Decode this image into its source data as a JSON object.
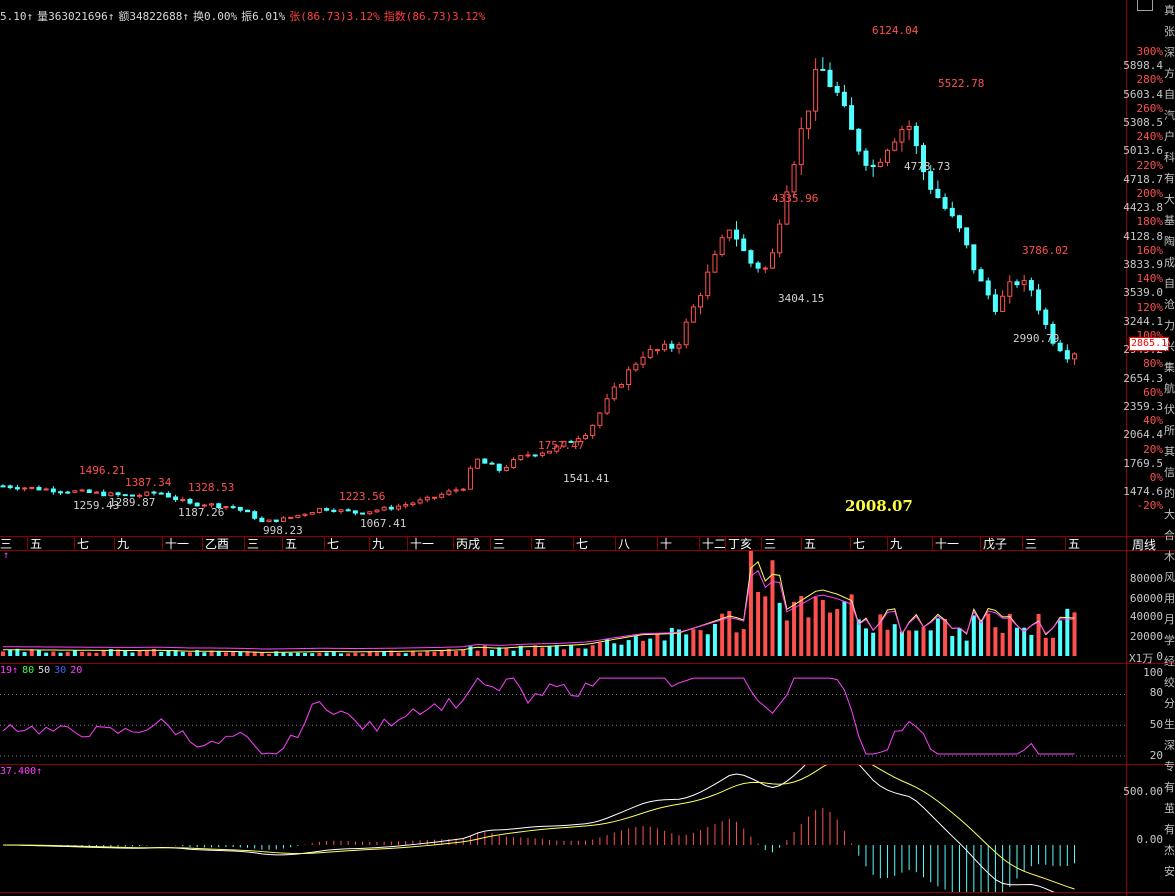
{
  "info_bar": {
    "items": [
      {
        "text": "5.10↑",
        "color": "white"
      },
      {
        "text": "量363021696↑",
        "color": "white"
      },
      {
        "text": "额34822688↑",
        "color": "white"
      },
      {
        "text": "换0.00%",
        "color": "white"
      },
      {
        "text": "振6.01%",
        "color": "white"
      },
      {
        "text": "张(86.73)3.12%",
        "color": "red"
      },
      {
        "text": "指数(86.73)3.12%",
        "color": "red"
      }
    ]
  },
  "price_axis": {
    "levels": [
      {
        "price": "5898.4",
        "pct": "300%"
      },
      {
        "price": "5603.4",
        "pct": "280%"
      },
      {
        "price": "5308.5",
        "pct": "260%"
      },
      {
        "price": "5013.6",
        "pct": "240%"
      },
      {
        "price": "4718.7",
        "pct": "220%"
      },
      {
        "price": "4423.8",
        "pct": "200%"
      },
      {
        "price": "4128.8",
        "pct": "180%"
      },
      {
        "price": "3833.9",
        "pct": "160%"
      },
      {
        "price": "3539.0",
        "pct": "140%"
      },
      {
        "price": "3244.1",
        "pct": "120%"
      },
      {
        "price": "2949.2",
        "pct": "100%"
      },
      {
        "price": "2654.3",
        "pct": "80%"
      },
      {
        "price": "2359.3",
        "pct": "60%"
      },
      {
        "price": "2064.4",
        "pct": "40%"
      },
      {
        "price": "1769.5",
        "pct": "20%"
      },
      {
        "price": "1474.6",
        "pct": "0%"
      },
      {
        "price": "",
        "pct": "-20%"
      }
    ],
    "current_price": "2865.1"
  },
  "annotations": [
    {
      "text": "6124.04",
      "type": "high"
    },
    {
      "text": "5522.78",
      "type": "high"
    },
    {
      "text": "4778.73",
      "type": "low"
    },
    {
      "text": "4335.96",
      "type": "high"
    },
    {
      "text": "3404.15",
      "type": "low"
    },
    {
      "text": "3786.02",
      "type": "high"
    },
    {
      "text": "2990.79",
      "type": "low"
    },
    {
      "text": "1757.47",
      "type": "high"
    },
    {
      "text": "1541.41",
      "type": "low"
    },
    {
      "text": "1496.21",
      "type": "high"
    },
    {
      "text": "1387.34",
      "type": "high"
    },
    {
      "text": "1259.43",
      "type": "low"
    },
    {
      "text": "1289.87",
      "type": "low"
    },
    {
      "text": "1328.53",
      "type": "high"
    },
    {
      "text": "1187.26",
      "type": "low"
    },
    {
      "text": "1223.56",
      "type": "high"
    },
    {
      "text": "998.23",
      "type": "low"
    },
    {
      "text": "1067.41",
      "type": "low"
    }
  ],
  "date_tag": "2008.07",
  "time_axis": {
    "labels": [
      "三",
      "五",
      "七",
      "九",
      "十一",
      "乙酉",
      "三",
      "五",
      "七",
      "九",
      "十一",
      "丙戌",
      "三",
      "五",
      "七",
      "八",
      "十",
      "十二",
      "丁亥",
      "三",
      "五",
      "七",
      "九",
      "十一",
      "戊子",
      "三",
      "五"
    ],
    "period_button": "周线"
  },
  "volume_panel": {
    "header": "↑",
    "axis": [
      "80000",
      "60000",
      "40000",
      "20000",
      "0"
    ],
    "unit": "X1万"
  },
  "kdj_panel": {
    "header": [
      {
        "text": "19↑",
        "color": "magenta"
      },
      {
        "text": "80",
        "color": "green"
      },
      {
        "text": "50",
        "color": "white"
      },
      {
        "text": "30",
        "color": "blue"
      },
      {
        "text": "20",
        "color": "magenta"
      }
    ],
    "axis": [
      "100",
      "80",
      "50",
      "20"
    ]
  },
  "macd_panel": {
    "header": "37.400↑",
    "axis": [
      "500.00",
      "0.00"
    ]
  },
  "side_strip_chars": [
    "真",
    "张",
    "深",
    "方",
    "自",
    "汽",
    "户",
    "科",
    "有",
    "大",
    "基",
    "陶",
    "成",
    "自",
    "沧",
    "力",
    "兴",
    "集",
    "航",
    "伏",
    "所",
    "其",
    "信",
    "的",
    "大",
    "合",
    "木",
    "风",
    "用",
    "月",
    "学",
    "经",
    "绞",
    "分",
    "生",
    "深",
    "专",
    "有",
    "茧",
    "有",
    "杰",
    "安"
  ],
  "colors": {
    "up": "#ff5050",
    "down": "#50ffff",
    "grid": "#8b0000",
    "ma_yellow": "#ffff60",
    "ma_magenta": "#ff40ff"
  },
  "chart_data": {
    "type": "candlestick",
    "x": [
      "三",
      "五",
      "七",
      "九",
      "十一",
      "乙酉",
      "三",
      "五",
      "七",
      "九",
      "十一",
      "丙戌",
      "三",
      "五",
      "七",
      "八",
      "十",
      "十二",
      "丁亥",
      "三",
      "五",
      "七",
      "九",
      "十一",
      "戊子",
      "三",
      "五"
    ],
    "path_points": [
      {
        "x": 0,
        "y": 1390
      },
      {
        "x": 2,
        "y": 1330
      },
      {
        "x": 3.6,
        "y": 1280
      },
      {
        "x": 4.4,
        "y": 1320
      },
      {
        "x": 5.3,
        "y": 1190
      },
      {
        "x": 5.6,
        "y": 1200
      },
      {
        "x": 6.5,
        "y": 1160
      },
      {
        "x": 7,
        "y": 1080
      },
      {
        "x": 7.3,
        "y": 1000
      },
      {
        "x": 8,
        "y": 1040
      },
      {
        "x": 9,
        "y": 1150
      },
      {
        "x": 10,
        "y": 1100
      },
      {
        "x": 11,
        "y": 1160
      },
      {
        "x": 12,
        "y": 1250
      },
      {
        "x": 13,
        "y": 1380
      },
      {
        "x": 13.3,
        "y": 1680
      },
      {
        "x": 14,
        "y": 1560
      },
      {
        "x": 14.7,
        "y": 1720
      },
      {
        "x": 15.5,
        "y": 1780
      },
      {
        "x": 16.5,
        "y": 1980
      },
      {
        "x": 17.2,
        "y": 2400
      },
      {
        "x": 18,
        "y": 2800
      },
      {
        "x": 19,
        "y": 2900
      },
      {
        "x": 19.8,
        "y": 3600
      },
      {
        "x": 20.5,
        "y": 4200
      },
      {
        "x": 21,
        "y": 3800
      },
      {
        "x": 21.6,
        "y": 3700
      },
      {
        "x": 22,
        "y": 4500
      },
      {
        "x": 22.5,
        "y": 5200
      },
      {
        "x": 23,
        "y": 5900
      },
      {
        "x": 23.5,
        "y": 5600
      },
      {
        "x": 24,
        "y": 5100
      },
      {
        "x": 24.5,
        "y": 4800
      },
      {
        "x": 25,
        "y": 5100
      },
      {
        "x": 25.5,
        "y": 5300
      },
      {
        "x": 26,
        "y": 4700
      },
      {
        "x": 26.5,
        "y": 4400
      },
      {
        "x": 27,
        "y": 4100
      },
      {
        "x": 27.5,
        "y": 3600
      },
      {
        "x": 28,
        "y": 3300
      },
      {
        "x": 28.5,
        "y": 3600
      },
      {
        "x": 29,
        "y": 3500
      },
      {
        "x": 29.5,
        "y": 3000
      },
      {
        "x": 30,
        "y": 2800
      },
      {
        "x": 30.4,
        "y": 2865
      }
    ]
  }
}
